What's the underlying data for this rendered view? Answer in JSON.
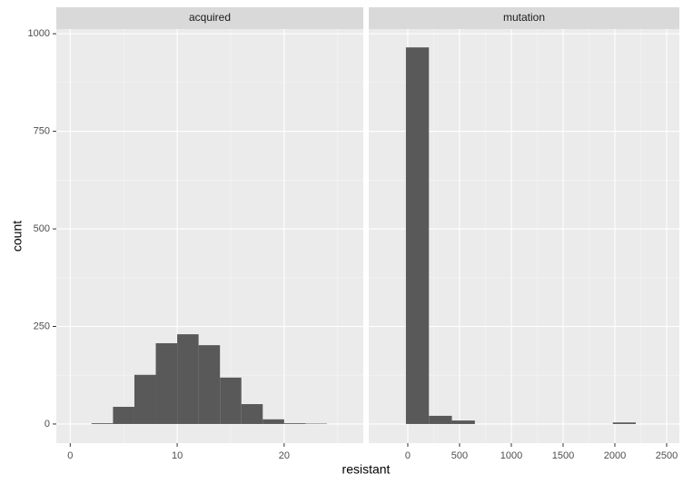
{
  "chart_data": {
    "type": "histogram",
    "x_label": "resistant",
    "y_label": "count",
    "ylim": [
      -49,
      1012
    ],
    "yticks": [
      0,
      250,
      500,
      750,
      1000
    ],
    "grid": true,
    "color": "#595959",
    "facets": [
      {
        "title": "acquired",
        "xlim": [
          -1.3,
          27.4
        ],
        "xticks": [
          0,
          10,
          20
        ],
        "bins": [
          2,
          4,
          6,
          8,
          10,
          12,
          14,
          16,
          18,
          20,
          22,
          24
        ],
        "counts": [
          2,
          44,
          126,
          207,
          230,
          202,
          119,
          51,
          12,
          2,
          1
        ]
      },
      {
        "title": "mutation",
        "xlim": [
          -377,
          2623
        ],
        "xticks": [
          0,
          500,
          1000,
          1500,
          2000,
          2500
        ],
        "bins": [
          -18,
          204,
          426,
          648,
          870,
          1092,
          1314,
          1536,
          1758,
          1980,
          2202
        ],
        "counts": [
          965,
          21,
          9,
          0,
          0,
          0,
          0,
          0,
          0,
          4
        ]
      }
    ]
  }
}
